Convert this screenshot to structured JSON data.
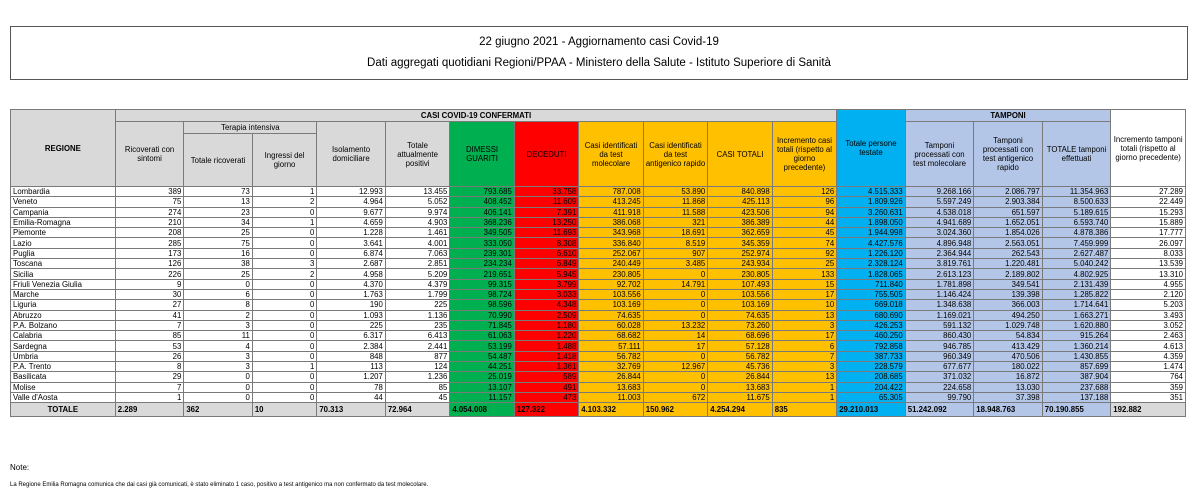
{
  "title": "22 giugno 2021 - Aggiornamento casi Covid-19",
  "subtitle": "Dati aggregati quotidiani Regioni/PPAA - Ministero della Salute - Istituto Superiore di Sanità",
  "headers": {
    "casi_confermati": "CASI COVID-19 CONFERMATI",
    "tamponi": "TAMPONI",
    "regione": "REGIONE",
    "ricoverati": "Ricoverati con sintomi",
    "terapia_intensiva": "Terapia intensiva",
    "totale_ricoverati": "Totale ricoverati",
    "ingressi_giorno": "Ingressi del giorno",
    "isolamento": "Isolamento domiciliare",
    "totale_positivi": "Totale attualmente positivi",
    "dimessi": "DIMESSI GUARITI",
    "deceduti": "DECEDUTI",
    "casi_molecolare": "Casi identificati da test molecolare",
    "casi_antigenico": "Casi identificati da test antigenico rapido",
    "casi_totali": "CASI TOTALI",
    "incremento_casi": "Incremento casi totali (rispetto al giorno precedente)",
    "totale_testate": "Totale persone testate",
    "tamp_molecolare": "Tamponi processati con test molecolare",
    "tamp_antigenico": "Tamponi processati con test antigenico rapido",
    "tamp_totale": "TOTALE tamponi effettuati",
    "incremento_tamponi": "Incremento tamponi totali (rispetto al giorno precedente)"
  },
  "rows": [
    [
      "Lombardia",
      "389",
      "73",
      "1",
      "12.993",
      "13.455",
      "793.685",
      "33.758",
      "787.008",
      "53.890",
      "840.898",
      "126",
      "4.515.333",
      "9.268.166",
      "2.086.797",
      "11.354.963",
      "27.289"
    ],
    [
      "Veneto",
      "75",
      "13",
      "2",
      "4.964",
      "5.052",
      "408.452",
      "11.609",
      "413.245",
      "11.868",
      "425.113",
      "96",
      "1.809.926",
      "5.597.249",
      "2.903.384",
      "8.500.633",
      "22.449"
    ],
    [
      "Campania",
      "274",
      "23",
      "0",
      "9.677",
      "9.974",
      "406.141",
      "7.391",
      "411.918",
      "11.588",
      "423.506",
      "94",
      "3.260.631",
      "4.538.018",
      "651.597",
      "5.189.615",
      "15.293"
    ],
    [
      "Emilia-Romagna",
      "210",
      "34",
      "1",
      "4.659",
      "4.903",
      "368.236",
      "13.250",
      "386.068",
      "321",
      "386.389",
      "44",
      "1.898.050",
      "4.941.689",
      "1.652.051",
      "6.593.740",
      "15.889"
    ],
    [
      "Piemonte",
      "208",
      "25",
      "0",
      "1.228",
      "1.461",
      "349.505",
      "11.693",
      "343.968",
      "18.691",
      "362.659",
      "45",
      "1.944.998",
      "3.024.360",
      "1.854.026",
      "4.878.386",
      "17.777"
    ],
    [
      "Lazio",
      "285",
      "75",
      "0",
      "3.641",
      "4.001",
      "333.050",
      "8.308",
      "336.840",
      "8.519",
      "345.359",
      "74",
      "4.427.576",
      "4.896.948",
      "2.563.051",
      "7.459.999",
      "26.097"
    ],
    [
      "Puglia",
      "173",
      "16",
      "0",
      "6.874",
      "7.063",
      "239.301",
      "6.610",
      "252.067",
      "907",
      "252.974",
      "92",
      "1.226.120",
      "2.364.944",
      "262.543",
      "2.627.487",
      "8.033"
    ],
    [
      "Toscana",
      "126",
      "38",
      "3",
      "2.687",
      "2.851",
      "234.234",
      "6.849",
      "240.449",
      "3.485",
      "243.934",
      "25",
      "2.328.124",
      "3.819.761",
      "1.220.481",
      "5.040.242",
      "13.539"
    ],
    [
      "Sicilia",
      "226",
      "25",
      "2",
      "4.958",
      "5.209",
      "219.651",
      "5.945",
      "230.805",
      "0",
      "230.805",
      "133",
      "1.828.065",
      "2.613.123",
      "2.189.802",
      "4.802.925",
      "13.310"
    ],
    [
      "Friuli Venezia Giulia",
      "9",
      "0",
      "0",
      "4.370",
      "4.379",
      "99.315",
      "3.799",
      "92.702",
      "14.791",
      "107.493",
      "15",
      "711.840",
      "1.781.898",
      "349.541",
      "2.131.439",
      "4.955"
    ],
    [
      "Marche",
      "30",
      "6",
      "0",
      "1.763",
      "1.799",
      "98.724",
      "3.033",
      "103.556",
      "0",
      "103.556",
      "17",
      "755.505",
      "1.146.424",
      "139.398",
      "1.285.822",
      "2.120"
    ],
    [
      "Liguria",
      "27",
      "8",
      "0",
      "190",
      "225",
      "98.596",
      "4.348",
      "103.169",
      "0",
      "103.169",
      "10",
      "669.018",
      "1.348.638",
      "366.003",
      "1.714.641",
      "5.203"
    ],
    [
      "Abruzzo",
      "41",
      "2",
      "0",
      "1.093",
      "1.136",
      "70.990",
      "2.509",
      "74.635",
      "0",
      "74.635",
      "13",
      "680.690",
      "1.169.021",
      "494.250",
      "1.663.271",
      "3.493"
    ],
    [
      "P.A. Bolzano",
      "7",
      "3",
      "0",
      "225",
      "235",
      "71.845",
      "1.180",
      "60.028",
      "13.232",
      "73.260",
      "3",
      "426.253",
      "591.132",
      "1.029.748",
      "1.620.880",
      "3.052"
    ],
    [
      "Calabria",
      "85",
      "11",
      "0",
      "6.317",
      "6.413",
      "61.063",
      "1.220",
      "68.682",
      "14",
      "68.696",
      "17",
      "460.250",
      "860.430",
      "54.834",
      "915.264",
      "2.463"
    ],
    [
      "Sardegna",
      "53",
      "4",
      "0",
      "2.384",
      "2.441",
      "53.199",
      "1.488",
      "57.111",
      "17",
      "57.128",
      "6",
      "792.858",
      "946.785",
      "413.429",
      "1.360.214",
      "4.613"
    ],
    [
      "Umbria",
      "26",
      "3",
      "0",
      "848",
      "877",
      "54.487",
      "1.418",
      "56.782",
      "0",
      "56.782",
      "7",
      "387.733",
      "960.349",
      "470.506",
      "1.430.855",
      "4.359"
    ],
    [
      "P.A. Trento",
      "8",
      "3",
      "1",
      "113",
      "124",
      "44.251",
      "1.361",
      "32.769",
      "12.967",
      "45.736",
      "3",
      "228.579",
      "677.677",
      "180.022",
      "857.699",
      "1.474"
    ],
    [
      "Basilicata",
      "29",
      "0",
      "0",
      "1.207",
      "1.236",
      "25.019",
      "589",
      "26.844",
      "0",
      "26.844",
      "13",
      "208.685",
      "371.032",
      "16.872",
      "387.904",
      "764"
    ],
    [
      "Molise",
      "7",
      "0",
      "0",
      "78",
      "85",
      "13.107",
      "491",
      "13.683",
      "0",
      "13.683",
      "1",
      "204.422",
      "224.658",
      "13.030",
      "237.688",
      "359"
    ],
    [
      "Valle d'Aosta",
      "1",
      "0",
      "0",
      "44",
      "45",
      "11.157",
      "473",
      "11.003",
      "672",
      "11.675",
      "1",
      "65.305",
      "99.790",
      "37.398",
      "137.188",
      "351"
    ]
  ],
  "totals": [
    "TOTALE",
    "2.289",
    "362",
    "10",
    "70.313",
    "72.964",
    "4.054.008",
    "127.322",
    "4.103.332",
    "150.962",
    "4.254.294",
    "835",
    "29.210.013",
    "51.242.092",
    "18.948.763",
    "70.190.855",
    "192.882"
  ],
  "note_title": "Note:",
  "note_text": "La Regione Emilia Romagna comunica che dai casi già comunicati, è stato eliminato 1 caso, positivo a test antigenico ma non confermato da test molecolare.",
  "colors": {
    "header_gray": "#d9d9d9",
    "dimessi_green": "#00b050",
    "deceduti_red": "#ff0000",
    "casi_orange": "#ffc000",
    "testate_blue": "#00b0f0",
    "tamponi_lightblue": "#b4c6e7"
  }
}
